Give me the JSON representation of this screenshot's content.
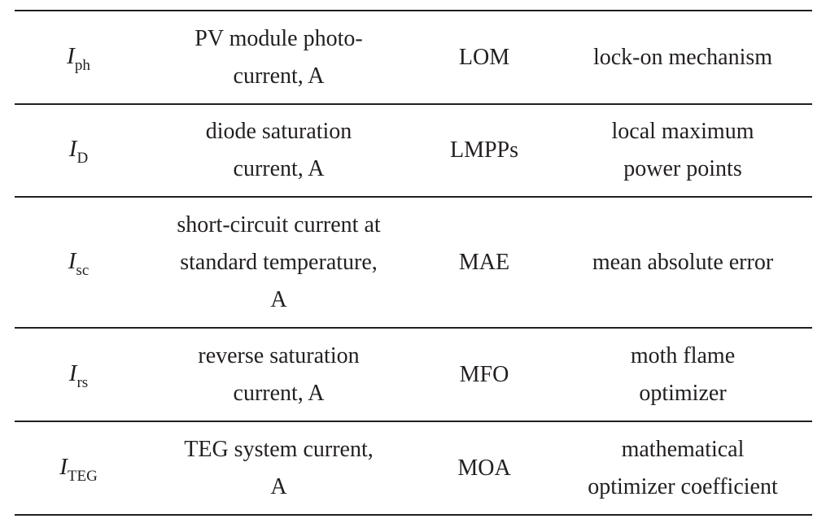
{
  "table": {
    "rows": [
      {
        "symbol": {
          "main": "I",
          "sub": "ph"
        },
        "description": [
          "PV module photo-",
          "current, A"
        ],
        "abbreviation": "LOM",
        "definition": [
          "lock-on mechanism"
        ]
      },
      {
        "symbol": {
          "main": "I",
          "sub": "D"
        },
        "description": [
          "diode saturation",
          "current, A"
        ],
        "abbreviation": "LMPPs",
        "definition": [
          "local maximum",
          "power points"
        ]
      },
      {
        "symbol": {
          "main": "I",
          "sub": "sc"
        },
        "description": [
          "short-circuit current at",
          "standard temperature,",
          "A"
        ],
        "abbreviation": "MAE",
        "definition": [
          "mean absolute error"
        ]
      },
      {
        "symbol": {
          "main": "I",
          "sub": "rs"
        },
        "description": [
          "reverse saturation",
          "current, A"
        ],
        "abbreviation": "MFO",
        "definition": [
          "moth flame",
          "optimizer"
        ]
      },
      {
        "symbol": {
          "main": "I",
          "sub": "TEG"
        },
        "description": [
          "TEG system current,",
          "A"
        ],
        "abbreviation": "MOA",
        "definition": [
          "mathematical",
          "optimizer coefficient"
        ]
      }
    ]
  }
}
